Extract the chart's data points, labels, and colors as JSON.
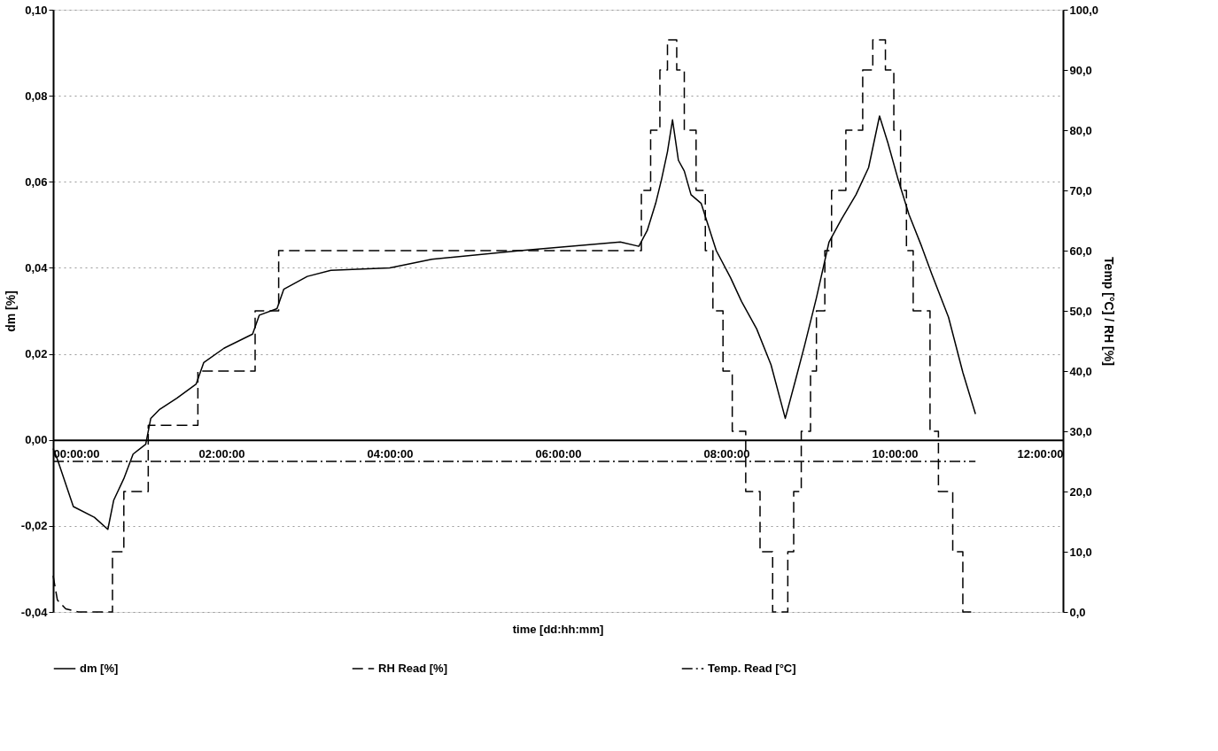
{
  "chart_data": {
    "type": "line",
    "xlabel": "time [dd:hh:mm]",
    "ylabel": "dm [%]",
    "y2label": "Temp [°C] / RH [%]",
    "xlim": [
      0,
      12
    ],
    "xticks": [
      {
        "value": 0,
        "label": "00:00:00"
      },
      {
        "value": 2,
        "label": "02:00:00"
      },
      {
        "value": 4,
        "label": "04:00:00"
      },
      {
        "value": 6,
        "label": "06:00:00"
      },
      {
        "value": 8,
        "label": "08:00:00"
      },
      {
        "value": 10,
        "label": "10:00:00"
      },
      {
        "value": 12,
        "label": "12:00:00"
      }
    ],
    "ylim": [
      -0.04,
      0.1
    ],
    "yticks": [
      {
        "value": -0.04,
        "label": "-0,04"
      },
      {
        "value": -0.02,
        "label": "-0,02"
      },
      {
        "value": 0,
        "label": "0,00"
      },
      {
        "value": 0.02,
        "label": "0,02"
      },
      {
        "value": 0.04,
        "label": "0,04"
      },
      {
        "value": 0.06,
        "label": "0,06"
      },
      {
        "value": 0.08,
        "label": "0,08"
      },
      {
        "value": 0.1,
        "label": "0,10"
      }
    ],
    "y2lim": [
      0,
      100
    ],
    "y2ticks": [
      {
        "value": 0,
        "label": "0,0"
      },
      {
        "value": 10,
        "label": "10,0"
      },
      {
        "value": 20,
        "label": "20,0"
      },
      {
        "value": 30,
        "label": "30,0"
      },
      {
        "value": 40,
        "label": "40,0"
      },
      {
        "value": 50,
        "label": "50,0"
      },
      {
        "value": 60,
        "label": "60,0"
      },
      {
        "value": 70,
        "label": "70,0"
      },
      {
        "value": 80,
        "label": "80,0"
      },
      {
        "value": 90,
        "label": "90,0"
      },
      {
        "value": 100,
        "label": "100,0"
      }
    ],
    "grid": "y",
    "legend": "bottom",
    "series": [
      {
        "name": "dm [%]",
        "color": "#000000",
        "line_style": "solid",
        "x": [
          0,
          0.05,
          0.24,
          0.49,
          0.65,
          0.72,
          0.84,
          0.95,
          1.1,
          1.16,
          1.26,
          1.47,
          1.7,
          1.79,
          2.03,
          2.37,
          2.45,
          2.66,
          2.74,
          3.02,
          3.3,
          4.0,
          4.5,
          5.55,
          6.74,
          6.96,
          7.06,
          7.16,
          7.23,
          7.3,
          7.36,
          7.43,
          7.5,
          7.58,
          7.7,
          7.88,
          8.05,
          8.18,
          8.36,
          8.53,
          8.7,
          8.82,
          8.93,
          9.07,
          9.22,
          9.37,
          9.54,
          9.69,
          9.82,
          9.92,
          10.04,
          10.17,
          10.32,
          10.44,
          10.64,
          10.81,
          10.96
        ],
        "values": [
          -0.002,
          -0.0045,
          -0.0155,
          -0.018,
          -0.0208,
          -0.014,
          -0.009,
          -0.0033,
          -0.001,
          0.005,
          0.007,
          0.0097,
          0.013,
          0.018,
          0.0213,
          0.0246,
          0.029,
          0.0305,
          0.035,
          0.038,
          0.0394,
          0.04,
          0.042,
          0.044,
          0.046,
          0.045,
          0.0487,
          0.055,
          0.0606,
          0.067,
          0.0744,
          0.065,
          0.0625,
          0.057,
          0.055,
          0.044,
          0.0377,
          0.0322,
          0.0258,
          0.0175,
          0.005,
          0.0138,
          0.022,
          0.033,
          0.046,
          0.0514,
          0.057,
          0.0633,
          0.0753,
          0.069,
          0.0606,
          0.0524,
          0.045,
          0.0386,
          0.0285,
          0.0157,
          0.006
        ]
      },
      {
        "name": "RH Read [%]",
        "color": "#000000",
        "line_style": "dashed",
        "axis": "y2",
        "x": [
          0,
          0.05,
          0.15,
          0.3,
          0.705,
          0.705,
          0.84,
          0.84,
          1.13,
          1.13,
          1.72,
          1.72,
          2.4,
          2.4,
          2.68,
          2.68,
          6.99,
          6.99,
          7.1,
          7.1,
          7.21,
          7.21,
          7.3,
          7.3,
          7.41,
          7.41,
          7.5,
          7.5,
          7.64,
          7.64,
          7.75,
          7.75,
          7.84,
          7.84,
          7.96,
          7.96,
          8.07,
          8.07,
          8.23,
          8.23,
          8.4,
          8.4,
          8.55,
          8.55,
          8.73,
          8.73,
          8.8,
          8.8,
          8.89,
          8.89,
          9.0,
          9.0,
          9.07,
          9.07,
          9.17,
          9.17,
          9.25,
          9.25,
          9.42,
          9.42,
          9.62,
          9.62,
          9.74,
          9.74,
          9.89,
          9.89,
          9.99,
          9.99,
          10.07,
          10.07,
          10.14,
          10.14,
          10.22,
          10.22,
          10.42,
          10.42,
          10.52,
          10.52,
          10.69,
          10.69,
          10.81,
          10.81,
          10.96
        ],
        "values": [
          6,
          2,
          0.5,
          0,
          0,
          10,
          10,
          20,
          20,
          31,
          31,
          40,
          40,
          50,
          50,
          60,
          60,
          70,
          70,
          80,
          80,
          90,
          90,
          95,
          95,
          90,
          90,
          80,
          80,
          70,
          70,
          60,
          60,
          50,
          50,
          40,
          40,
          30,
          30,
          20,
          20,
          10,
          10,
          0,
          0,
          10,
          10,
          20,
          20,
          30,
          30,
          40,
          40,
          50,
          50,
          60,
          60,
          70,
          70,
          80,
          80,
          90,
          90,
          95,
          95,
          90,
          90,
          80,
          80,
          70,
          70,
          60,
          60,
          50,
          50,
          30,
          30,
          20,
          20,
          10,
          10,
          0,
          0
        ]
      },
      {
        "name": "Temp. Read [°C]",
        "color": "#000000",
        "line_style": "dashdot",
        "axis": "y2",
        "x": [
          0,
          10.96
        ],
        "values": [
          25,
          25
        ]
      }
    ]
  }
}
